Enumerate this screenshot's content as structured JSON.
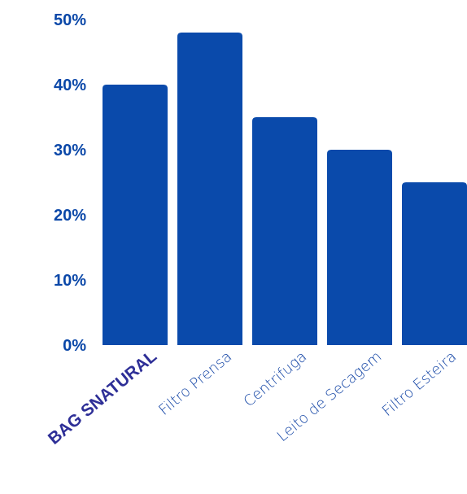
{
  "colors": {
    "bar": "#0a4aab",
    "tick_text": "#0a47a8",
    "category_text": "#1546a6",
    "highlight_text": "#2e2f97"
  },
  "chart_data": {
    "type": "bar",
    "title": "",
    "xlabel": "",
    "ylabel": "",
    "categories": [
      "BAG SNATURAL",
      "Filtro Prensa",
      "Centrifuga",
      "Leito de Secagem",
      "Filtro Esteira"
    ],
    "values": [
      40,
      48,
      35,
      30,
      25
    ],
    "ylim": [
      0,
      50
    ],
    "yticks": [
      "0%",
      "10%",
      "20%",
      "30%",
      "40%",
      "50%"
    ],
    "grid": false,
    "legend": "none"
  }
}
